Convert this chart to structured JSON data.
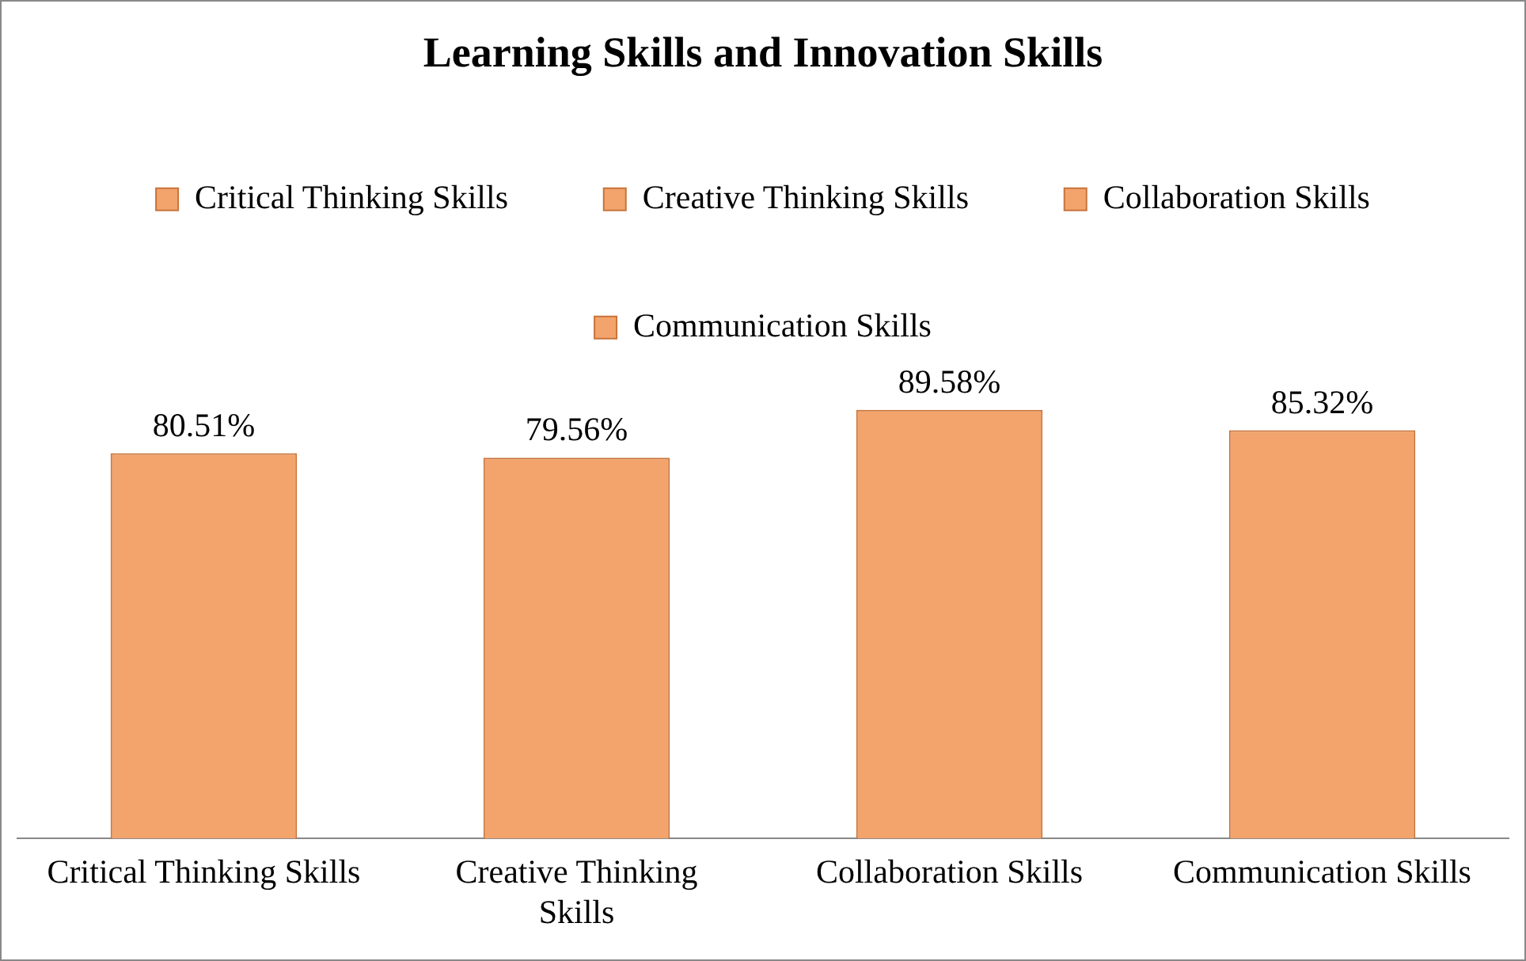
{
  "chart_data": {
    "type": "bar",
    "title": "Learning Skills and Innovation Skills",
    "categories": [
      "Critical Thinking Skills",
      "Creative Thinking Skills",
      "Collaboration Skills",
      "Communication Skills"
    ],
    "series": [
      {
        "name": "Critical Thinking Skills",
        "color": "#f2a46c",
        "values": [
          80.51,
          null,
          null,
          null
        ],
        "value_labels": [
          "80.51%",
          null,
          null,
          null
        ]
      },
      {
        "name": "Creative Thinking Skills",
        "color": "#f2a46c",
        "values": [
          null,
          79.56,
          null,
          null
        ],
        "value_labels": [
          null,
          "79.56%",
          null,
          null
        ]
      },
      {
        "name": "Collaboration Skills",
        "color": "#f2a46c",
        "values": [
          null,
          null,
          89.58,
          null
        ],
        "value_labels": [
          null,
          null,
          "89.58%",
          null
        ]
      },
      {
        "name": "Communication Skills",
        "color": "#f2a46c",
        "values": [
          null,
          null,
          null,
          85.32
        ],
        "value_labels": [
          null,
          null,
          null,
          "85.32%"
        ]
      }
    ],
    "tick_labels": "x",
    "legend": "top"
  }
}
